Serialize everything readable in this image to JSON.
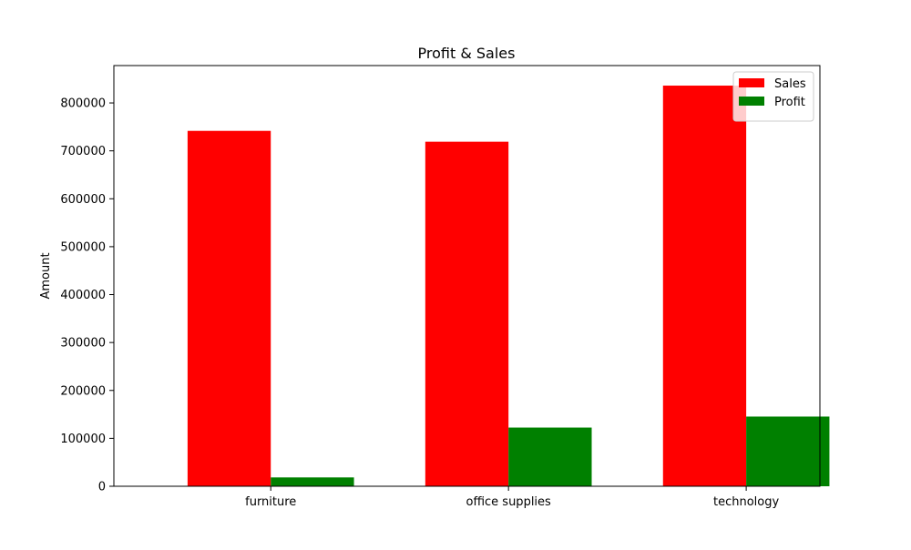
{
  "chart_data": {
    "type": "bar",
    "title": "Profit & Sales",
    "xlabel": "",
    "ylabel": "Amount",
    "categories": [
      "furniture",
      "office supplies",
      "technology"
    ],
    "series": [
      {
        "name": "Sales",
        "color": "#ff0000",
        "values": [
          741720,
          719047,
          836154
        ]
      },
      {
        "name": "Profit",
        "color": "#008000",
        "values": [
          18451,
          122491,
          145455
        ]
      }
    ],
    "ylim": [
      0,
      878000
    ],
    "yticks": [
      0,
      100000,
      200000,
      300000,
      400000,
      500000,
      600000,
      700000,
      800000
    ],
    "grid": false,
    "legend_position": "top-right"
  }
}
